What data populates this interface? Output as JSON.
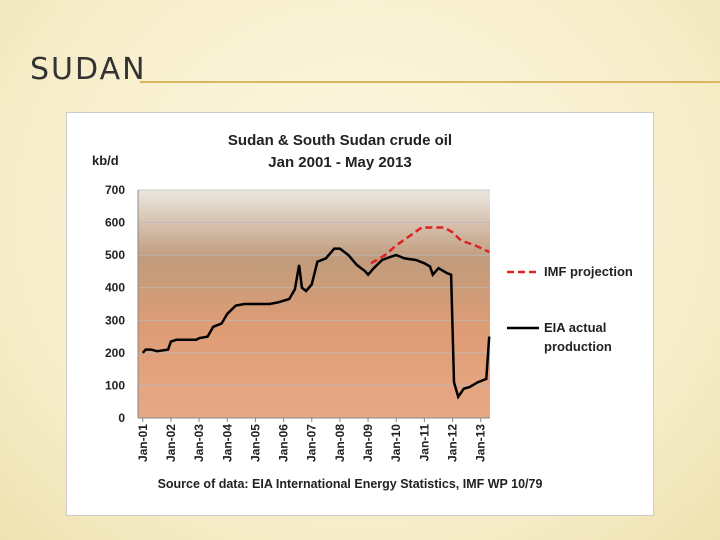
{
  "slide_title": "SUDAN",
  "chart_data": {
    "type": "line",
    "title": "Sudan & South Sudan crude oil",
    "subtitle": "Jan 2001 - May 2013",
    "y_label": "kb/d",
    "source": "Source of data: EIA International Energy Statistics, IMF WP 10/79",
    "xlim": [
      2000.83,
      2013.33
    ],
    "xticks": [
      {
        "value": 2001,
        "label": "Jan-01"
      },
      {
        "value": 2002,
        "label": "Jan-02"
      },
      {
        "value": 2003,
        "label": "Jan-03"
      },
      {
        "value": 2004,
        "label": "Jan-04"
      },
      {
        "value": 2005,
        "label": "Jan-05"
      },
      {
        "value": 2006,
        "label": "Jan-06"
      },
      {
        "value": 2007,
        "label": "Jan-07"
      },
      {
        "value": 2008,
        "label": "Jan-08"
      },
      {
        "value": 2009,
        "label": "Jan-09"
      },
      {
        "value": 2010,
        "label": "Jan-10"
      },
      {
        "value": 2011,
        "label": "Jan-11"
      },
      {
        "value": 2012,
        "label": "Jan-12"
      },
      {
        "value": 2013,
        "label": "Jan-13"
      }
    ],
    "ylim": [
      0,
      700
    ],
    "yticks": [
      0,
      100,
      200,
      300,
      400,
      500,
      600,
      700
    ],
    "grid": true,
    "legend": "right",
    "series": [
      {
        "name": "IMF projection",
        "color": "#dd2222",
        "dashed": true,
        "x": [
          2009.1,
          2009.6,
          2010.0,
          2010.5,
          2010.9,
          2011.7,
          2012.0,
          2012.3,
          2012.8,
          2013.3
        ],
        "values": [
          475,
          500,
          530,
          560,
          585,
          585,
          570,
          545,
          530,
          510
        ]
      },
      {
        "name": "EIA actual production",
        "color": "#000000",
        "dashed": false,
        "x": [
          2001.0,
          2001.1,
          2001.3,
          2001.5,
          2001.9,
          2002.0,
          2002.2,
          2002.9,
          2003.0,
          2003.3,
          2003.5,
          2003.8,
          2004.0,
          2004.3,
          2004.6,
          2005.0,
          2005.5,
          2005.8,
          2006.0,
          2006.2,
          2006.4,
          2006.55,
          2006.65,
          2006.8,
          2007.0,
          2007.2,
          2007.5,
          2007.8,
          2008.0,
          2008.3,
          2008.6,
          2008.9,
          2009.0,
          2009.2,
          2009.5,
          2009.8,
          2010.0,
          2010.3,
          2010.7,
          2011.0,
          2011.2,
          2011.3,
          2011.5,
          2011.8,
          2011.95,
          2012.05,
          2012.2,
          2012.4,
          2012.6,
          2012.9,
          2013.2,
          2013.3
        ],
        "values": [
          200,
          210,
          210,
          205,
          210,
          235,
          240,
          240,
          245,
          250,
          280,
          290,
          320,
          345,
          350,
          350,
          350,
          355,
          360,
          365,
          395,
          470,
          400,
          390,
          410,
          480,
          490,
          520,
          520,
          500,
          470,
          450,
          440,
          460,
          485,
          495,
          500,
          490,
          485,
          475,
          465,
          440,
          460,
          445,
          440,
          110,
          65,
          90,
          95,
          110,
          120,
          250
        ]
      }
    ]
  }
}
